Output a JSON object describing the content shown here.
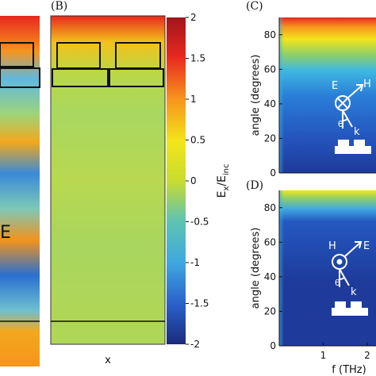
{
  "panels": {
    "A": {
      "label": "E"
    },
    "B": {
      "label": "(B)",
      "xlabel": "x"
    },
    "C": {
      "label": "(C)"
    },
    "D": {
      "label": "(D)"
    }
  },
  "colorbar": {
    "ticks": [
      "2",
      "1.5",
      "1",
      "0.5",
      "0",
      "-0.5",
      "-1",
      "-1.5",
      "-2"
    ],
    "label_main": "E",
    "label_sub_x": "x",
    "label_slash": "/E",
    "label_sub_inc": "inc"
  },
  "polar_c": {
    "E": "E",
    "H": "H",
    "theta": "θ",
    "k": "k"
  },
  "polar_d": {
    "E": "E",
    "H": "H",
    "theta": "θ",
    "k": "k"
  },
  "colors": {
    "dark_red": "#a0161d",
    "red": "#e8281e",
    "orange": "#f7941d",
    "yellow": "#f2e51a",
    "yellow_green": "#c9dc2f",
    "green": "#8fcf6a",
    "cyan": "#3fb8e0",
    "blue": "#2a6fd0",
    "dark_blue": "#1e3a9a",
    "navy": "#1a2a7a"
  },
  "chart_data": [
    {
      "type": "heatmap",
      "panel": "C",
      "title": "",
      "xlabel": "",
      "ylabel": "angle (degrees)",
      "xlim": [
        0,
        2.2
      ],
      "ylim": [
        0,
        90
      ],
      "yticks": [
        0,
        20,
        40,
        60,
        80
      ],
      "xticks": []
    },
    {
      "type": "heatmap",
      "panel": "D",
      "title": "",
      "xlabel": "f (THz)",
      "ylabel": "angle (degrees)",
      "xlim": [
        0,
        2.2
      ],
      "ylim": [
        0,
        90
      ],
      "yticks": [
        0,
        20,
        40,
        60,
        80
      ],
      "xticks": [
        1,
        2
      ]
    }
  ]
}
